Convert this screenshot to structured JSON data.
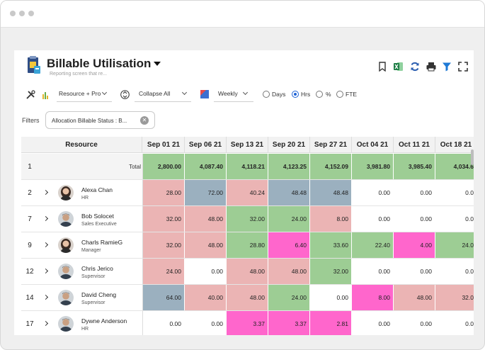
{
  "app": {
    "title": "Billable Utilisation",
    "subtitle": "Reporting screen that re..."
  },
  "toolbar": {
    "group_by": "Resource + Pro",
    "collapse": "Collapse All",
    "period": "Weekly",
    "units": [
      {
        "label": "Days",
        "selected": false
      },
      {
        "label": "Hrs",
        "selected": true
      },
      {
        "label": "%",
        "selected": false
      },
      {
        "label": "FTE",
        "selected": false
      }
    ]
  },
  "filters": {
    "label": "Filters",
    "chips": [
      "Allocation Billable Status : B..."
    ]
  },
  "grid": {
    "resource_header": "Resource",
    "dates": [
      "Sep 01 21",
      "Sep 06 21",
      "Sep 13 21",
      "Sep 20 21",
      "Sep 27 21",
      "Oct 04 21",
      "Oct 11 21",
      "Oct 18 21"
    ],
    "total": {
      "num": "1",
      "label": "Total",
      "values": [
        "2,800.00",
        "4,087.40",
        "4,118.21",
        "4,123.25",
        "4,152.09",
        "3,981.80",
        "3,985.40",
        "4,034.6"
      ],
      "colors": [
        "green",
        "green",
        "green",
        "green",
        "green",
        "green",
        "green",
        "green"
      ]
    },
    "rows": [
      {
        "num": "2",
        "name": "Alexa Chan",
        "role": "HR",
        "avatar": "female",
        "values": [
          "28.00",
          "72.00",
          "40.24",
          "48.48",
          "48.48",
          "0.00",
          "0.00",
          "0.0"
        ],
        "colors": [
          "pink",
          "blue",
          "pink",
          "blue",
          "blue",
          "white",
          "white",
          "white"
        ]
      },
      {
        "num": "7",
        "name": "Bob Solocet",
        "role": "Sales Executive",
        "avatar": "male",
        "values": [
          "32.00",
          "48.00",
          "32.00",
          "24.00",
          "8.00",
          "0.00",
          "0.00",
          "0.0"
        ],
        "colors": [
          "pink",
          "pink",
          "green",
          "green",
          "pink",
          "white",
          "white",
          "white"
        ]
      },
      {
        "num": "9",
        "name": "Charls RamieG",
        "role": "Manager",
        "avatar": "female",
        "values": [
          "32.00",
          "48.00",
          "28.80",
          "6.40",
          "33.60",
          "22.40",
          "4.00",
          "24.0"
        ],
        "colors": [
          "pink",
          "pink",
          "green",
          "magenta",
          "green",
          "green",
          "magenta",
          "green"
        ]
      },
      {
        "num": "12",
        "name": "Chris Jerico",
        "role": "Supervisor",
        "avatar": "male",
        "values": [
          "24.00",
          "0.00",
          "48.00",
          "48.00",
          "32.00",
          "0.00",
          "0.00",
          "0.0"
        ],
        "colors": [
          "pink",
          "white",
          "pink",
          "pink",
          "green",
          "white",
          "white",
          "white"
        ]
      },
      {
        "num": "14",
        "name": "David Cheng",
        "role": "Supervisor",
        "avatar": "male",
        "values": [
          "64.00",
          "40.00",
          "48.00",
          "24.00",
          "0.00",
          "8.00",
          "48.00",
          "32.0"
        ],
        "colors": [
          "blue",
          "pink",
          "pink",
          "green",
          "white",
          "magenta",
          "pink",
          "pink"
        ]
      },
      {
        "num": "17",
        "name": "Dywne Anderson",
        "role": "HR",
        "avatar": "male",
        "values": [
          "0.00",
          "0.00",
          "3.37",
          "3.37",
          "2.81",
          "0.00",
          "0.00",
          "0.0"
        ],
        "colors": [
          "white",
          "white",
          "magenta",
          "magenta",
          "magenta",
          "white",
          "white",
          "white"
        ]
      }
    ]
  },
  "palette": {
    "green": "#9dcd94",
    "pink": "#ebb4b4",
    "blue": "#9bb0bf",
    "magenta": "#ff66cc",
    "white": "#ffffff"
  }
}
